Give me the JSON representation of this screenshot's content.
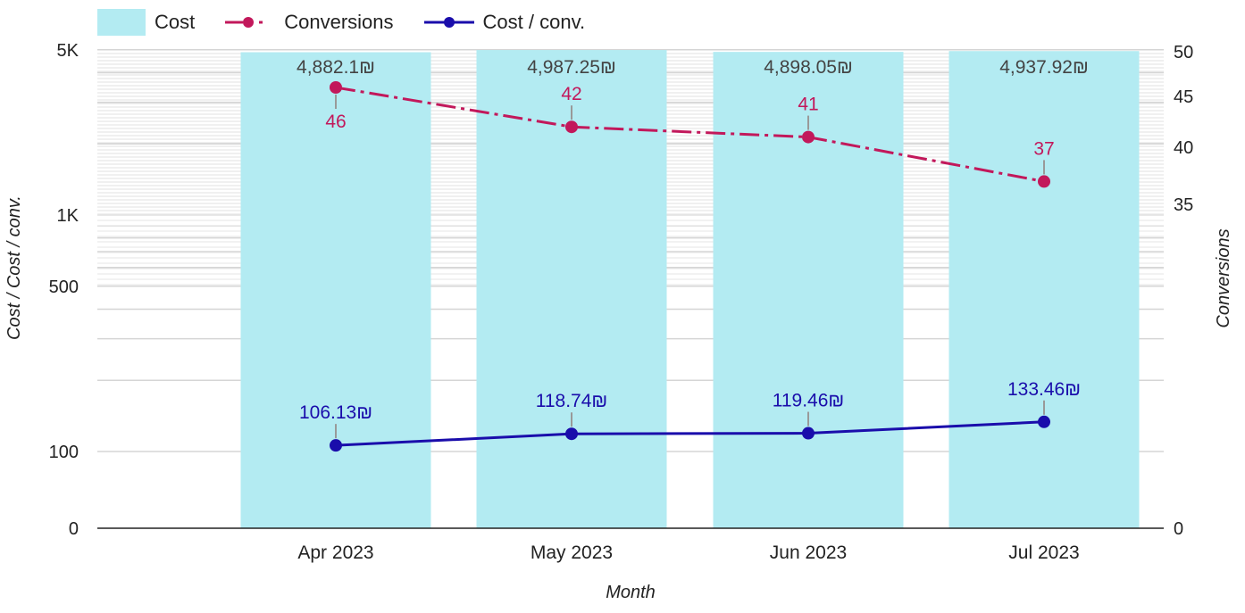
{
  "legend": {
    "cost_label": "Cost",
    "conversions_label": "Conversions",
    "cpc_label": "Cost / conv."
  },
  "colors": {
    "cost_bar": "#b3ebf2",
    "conversions": "#c2185b",
    "cost_per_conv": "#1a0dab",
    "grid_band": "#d5d5d5",
    "axis_text": "#222222",
    "cost_label_text": "#444444"
  },
  "chart_data": {
    "type": "bar",
    "categories": [
      "Apr 2023",
      "May 2023",
      "Jun 2023",
      "Jul 2023"
    ],
    "xlabel": "Month",
    "ylabel_left": "Cost / Cost / conv.",
    "ylabel_right": "Conversions",
    "left_axis": {
      "scale": "log",
      "ticks": [
        "0",
        "100",
        "500",
        "1K",
        "5K"
      ],
      "tick_values": [
        0,
        100,
        500,
        1000,
        5000
      ]
    },
    "right_axis": {
      "ticks": [
        "0",
        "35",
        "40",
        "45",
        "50"
      ],
      "tick_values": [
        0,
        35,
        40,
        45,
        50
      ],
      "ylim": [
        0,
        50
      ]
    },
    "series": [
      {
        "name": "Cost",
        "type": "bar",
        "axis": "left",
        "values": [
          4882.1,
          4987.25,
          4898.05,
          4937.92
        ],
        "labels": [
          "4,882.1₪",
          "4,987.25₪",
          "4,898.05₪",
          "4,937.92₪"
        ]
      },
      {
        "name": "Conversions",
        "type": "line",
        "axis": "right",
        "style": "dash-dot",
        "values": [
          46,
          42,
          41,
          37
        ],
        "labels": [
          "46",
          "42",
          "41",
          "37"
        ]
      },
      {
        "name": "Cost / conv.",
        "type": "line",
        "axis": "left",
        "style": "solid",
        "values": [
          106.13,
          118.74,
          119.46,
          133.46
        ],
        "labels": [
          "106.13₪",
          "118.74₪",
          "119.46₪",
          "133.46₪"
        ]
      }
    ],
    "grid": true,
    "legend_position": "top-left"
  }
}
